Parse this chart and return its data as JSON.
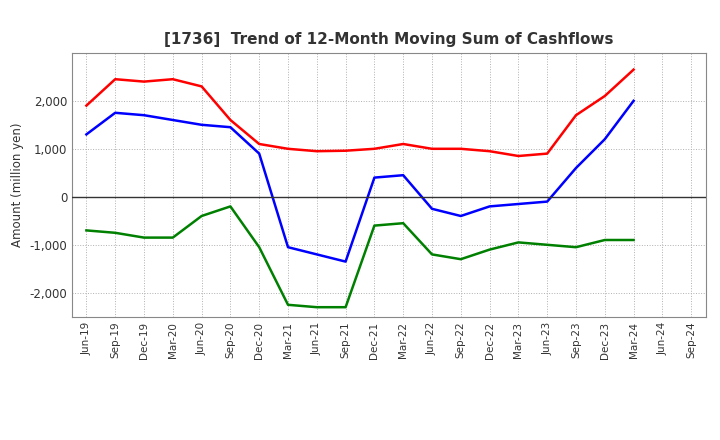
{
  "title": "[1736]  Trend of 12-Month Moving Sum of Cashflows",
  "ylabel": "Amount (million yen)",
  "x_labels": [
    "Jun-19",
    "Sep-19",
    "Dec-19",
    "Mar-20",
    "Jun-20",
    "Sep-20",
    "Dec-20",
    "Mar-21",
    "Jun-21",
    "Sep-21",
    "Dec-21",
    "Mar-22",
    "Jun-22",
    "Sep-22",
    "Dec-22",
    "Mar-23",
    "Jun-23",
    "Sep-23",
    "Dec-23",
    "Mar-24",
    "Jun-24",
    "Sep-24"
  ],
  "operating": [
    1900,
    2450,
    2400,
    2450,
    2300,
    1600,
    1100,
    1000,
    950,
    960,
    1000,
    1100,
    1000,
    1000,
    950,
    850,
    900,
    1700,
    2100,
    2650,
    null,
    null
  ],
  "investing": [
    -700,
    -750,
    -850,
    -850,
    -400,
    -200,
    -1050,
    -2250,
    -2300,
    -2300,
    -600,
    -550,
    -1200,
    -1300,
    -1100,
    -950,
    -1000,
    -1050,
    -900,
    -900,
    null,
    null
  ],
  "free": [
    1300,
    1750,
    1700,
    1600,
    1500,
    1450,
    900,
    -1050,
    -1200,
    -1350,
    400,
    450,
    -250,
    -400,
    -200,
    -150,
    -100,
    600,
    1200,
    2000,
    null,
    null
  ],
  "ylim": [
    -2500,
    3000
  ],
  "yticks": [
    -2000,
    -1000,
    0,
    1000,
    2000
  ],
  "colors": {
    "operating": "#ff0000",
    "investing": "#008000",
    "free": "#0000ff"
  },
  "title_color": "#404040",
  "grid_color": "#b0b0b0",
  "line_width": 1.8
}
